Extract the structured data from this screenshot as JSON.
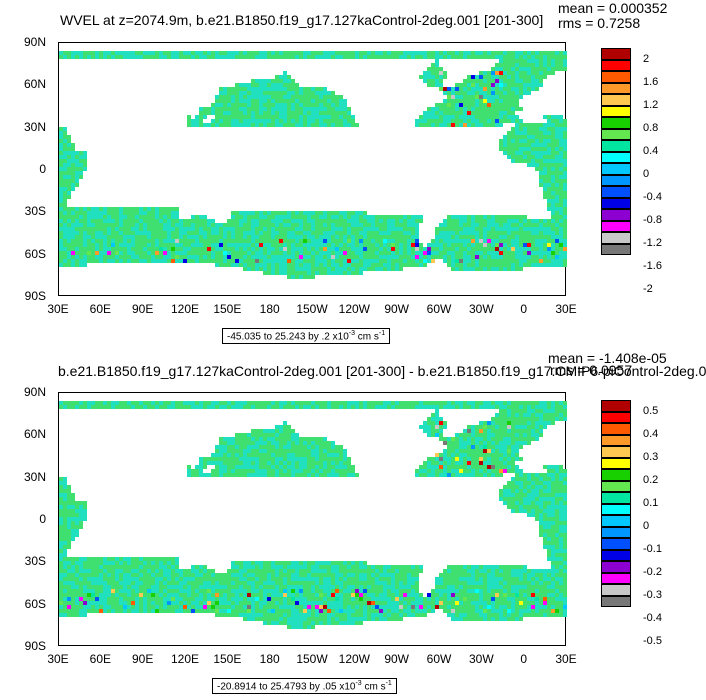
{
  "panels": [
    {
      "title": "WVEL at z=2074.9m, b.e21.B1850.f19_g17.127kaControl-2deg.001 [201-300]",
      "stats": {
        "mean": "mean = 0.000352",
        "rms": "rms = 0.7258"
      },
      "y_labels": [
        "90N",
        "60N",
        "30N",
        "0",
        "30S",
        "60S",
        "90S"
      ],
      "x_labels": [
        "30E",
        "60E",
        "90E",
        "120E",
        "150E",
        "180",
        "150W",
        "120W",
        "90W",
        "60W",
        "30W",
        "0",
        "30E"
      ],
      "legend_labels": [
        "2",
        "1.6",
        "1.2",
        "0.8",
        "0.4",
        "0",
        "-0.4",
        "-0.8",
        "-1.2",
        "-1.6",
        "-2"
      ],
      "range_note": {
        "text": "-45.035 to 25.243 by .2 x10",
        "exp": "-3",
        "unit": " cm s",
        "unit_exp": "-1"
      }
    },
    {
      "title": "b.e21.B1850.f19_g17.127kaControl-2deg.001 [201-300] - b.e21.B1850.f19_g17.CMIP6-piControl-2deg.0",
      "stats": {
        "mean": "mean = -1.408e-05",
        "rms": "rms = 0.0957"
      },
      "y_labels": [
        "90N",
        "60N",
        "30N",
        "0",
        "30S",
        "60S",
        "90S"
      ],
      "x_labels": [
        "30E",
        "60E",
        "90E",
        "120E",
        "150E",
        "180",
        "150W",
        "120W",
        "90W",
        "60W",
        "30W",
        "0",
        "30E"
      ],
      "legend_labels": [
        "0.5",
        "0.4",
        "0.3",
        "0.2",
        "0.1",
        "0",
        "-0.1",
        "-0.2",
        "-0.3",
        "-0.4",
        "-0.5"
      ],
      "range_note": {
        "text": "-20.8914 to 25.4793 by .05 x10",
        "exp": "-3",
        "unit": " cm s",
        "unit_exp": "-1"
      }
    }
  ],
  "colors": {
    "legend": [
      "#b00000",
      "#ff0000",
      "#ff5a00",
      "#ff9a2a",
      "#ffc850",
      "#ffff00",
      "#18d000",
      "#64e650",
      "#00e6a0",
      "#00ffff",
      "#00c8ff",
      "#0096ff",
      "#0050ff",
      "#0000e6",
      "#8c00d2",
      "#ff00ff",
      "#c8c8c8",
      "#787878"
    ],
    "ocean_main": "#40e070",
    "ocean_alt": "#20e0c0"
  },
  "map": {
    "lon_range": [
      30,
      390
    ],
    "lat_range": [
      -90,
      90
    ]
  }
}
